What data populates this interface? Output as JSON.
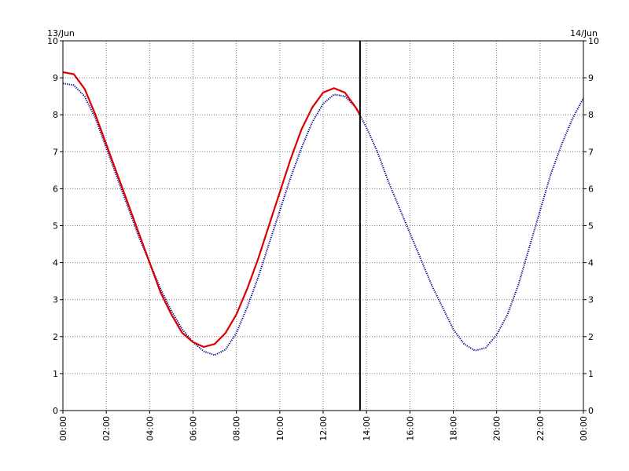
{
  "chart_data": {
    "type": "line",
    "x_unit": "hours",
    "xlim": [
      0,
      24
    ],
    "ylim": [
      0,
      10
    ],
    "grid": true,
    "x_tick_labels": [
      "00:00",
      "02:00",
      "04:00",
      "06:00",
      "08:00",
      "10:00",
      "12:00",
      "14:00",
      "16:00",
      "18:00",
      "20:00",
      "22:00",
      "00:00"
    ],
    "y_tick_labels": [
      "0",
      "1",
      "2",
      "3",
      "4",
      "5",
      "6",
      "7",
      "8",
      "9",
      "10"
    ],
    "date_labels": {
      "start": "13/Jun",
      "end": "14/Jun"
    },
    "current_time_marker": 13.7,
    "series": [
      {
        "color": "#00008b",
        "style": "dotted",
        "points": [
          [
            0,
            8.85
          ],
          [
            0.5,
            8.8
          ],
          [
            1,
            8.5
          ],
          [
            1.5,
            7.9
          ],
          [
            2,
            7.1
          ],
          [
            2.5,
            6.3
          ],
          [
            3,
            5.5
          ],
          [
            3.5,
            4.7
          ],
          [
            4,
            4.0
          ],
          [
            4.5,
            3.3
          ],
          [
            5,
            2.7
          ],
          [
            5.5,
            2.2
          ],
          [
            6,
            1.85
          ],
          [
            6.5,
            1.6
          ],
          [
            7,
            1.5
          ],
          [
            7.5,
            1.65
          ],
          [
            8,
            2.1
          ],
          [
            8.5,
            2.8
          ],
          [
            9,
            3.6
          ],
          [
            9.5,
            4.5
          ],
          [
            10,
            5.4
          ],
          [
            10.5,
            6.3
          ],
          [
            11,
            7.1
          ],
          [
            11.5,
            7.8
          ],
          [
            12,
            8.3
          ],
          [
            12.5,
            8.55
          ],
          [
            13,
            8.5
          ],
          [
            13.5,
            8.2
          ],
          [
            14,
            7.65
          ],
          [
            14.5,
            7.0
          ],
          [
            15,
            6.2
          ],
          [
            15.5,
            5.5
          ],
          [
            16,
            4.8
          ],
          [
            16.5,
            4.1
          ],
          [
            17,
            3.4
          ],
          [
            17.5,
            2.8
          ],
          [
            18,
            2.2
          ],
          [
            18.5,
            1.8
          ],
          [
            19,
            1.62
          ],
          [
            19.5,
            1.7
          ],
          [
            20,
            2.05
          ],
          [
            20.5,
            2.6
          ],
          [
            21,
            3.4
          ],
          [
            21.5,
            4.4
          ],
          [
            22,
            5.4
          ],
          [
            22.5,
            6.4
          ],
          [
            23,
            7.2
          ],
          [
            23.5,
            7.9
          ],
          [
            24,
            8.45
          ]
        ]
      },
      {
        "color": "#dd0000",
        "style": "solid",
        "points": [
          [
            0,
            9.15
          ],
          [
            0.5,
            9.1
          ],
          [
            1,
            8.7
          ],
          [
            1.5,
            8.0
          ],
          [
            2,
            7.2
          ],
          [
            2.5,
            6.4
          ],
          [
            3,
            5.6
          ],
          [
            3.5,
            4.8
          ],
          [
            4,
            4.0
          ],
          [
            4.5,
            3.2
          ],
          [
            5,
            2.6
          ],
          [
            5.5,
            2.1
          ],
          [
            6,
            1.85
          ],
          [
            6.5,
            1.72
          ],
          [
            7,
            1.8
          ],
          [
            7.5,
            2.1
          ],
          [
            8,
            2.6
          ],
          [
            8.5,
            3.3
          ],
          [
            9,
            4.1
          ],
          [
            9.5,
            5.0
          ],
          [
            10,
            5.9
          ],
          [
            10.5,
            6.8
          ],
          [
            11,
            7.6
          ],
          [
            11.5,
            8.2
          ],
          [
            12,
            8.6
          ],
          [
            12.5,
            8.72
          ],
          [
            13,
            8.6
          ],
          [
            13.5,
            8.2
          ],
          [
            13.7,
            8.0
          ]
        ]
      }
    ]
  }
}
